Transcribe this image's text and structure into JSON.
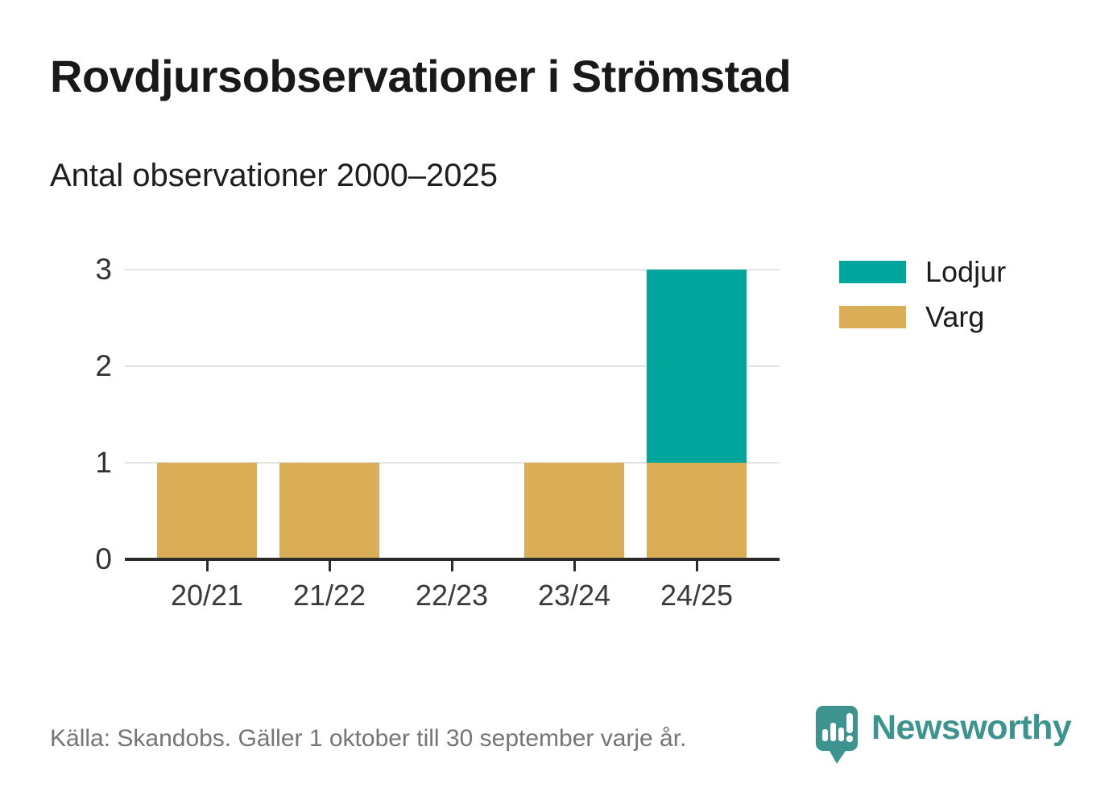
{
  "header": {
    "title": "Rovdjursobservationer i Strömstad",
    "subtitle": "Antal observationer 2000–2025"
  },
  "chart_data": {
    "type": "bar",
    "stacked": true,
    "categories": [
      "20/21",
      "21/22",
      "22/23",
      "23/24",
      "24/25"
    ],
    "series": [
      {
        "name": "Varg",
        "color": "#d9ae56",
        "values": [
          1,
          1,
          0,
          1,
          1
        ]
      },
      {
        "name": "Lodjur",
        "color": "#00a69b",
        "values": [
          0,
          0,
          0,
          0,
          2
        ]
      }
    ],
    "title": "Rovdjursobservationer i Strömstad",
    "subtitle": "Antal observationer 2000–2025",
    "xlabel": "",
    "ylabel": "",
    "ylim": [
      0,
      3
    ],
    "yticks": [
      0,
      1,
      2,
      3
    ],
    "grid": true,
    "legend_position": "right-of-plot-top"
  },
  "legend": {
    "items": [
      {
        "label": "Lodjur",
        "color": "#00a69b"
      },
      {
        "label": "Varg",
        "color": "#d9ae56"
      }
    ]
  },
  "footer": {
    "source": "Källa: Skandobs. Gäller 1 oktober till 30 september varje år.",
    "brand_name": "Newsworthy"
  },
  "colors": {
    "lodjur_teal": "#00a69b",
    "varg_gold": "#d9ae56",
    "axis": "#2b2b2b",
    "gridline": "#e2e2e2",
    "logo_teal": "#3d948f",
    "source_gray": "#757575"
  }
}
